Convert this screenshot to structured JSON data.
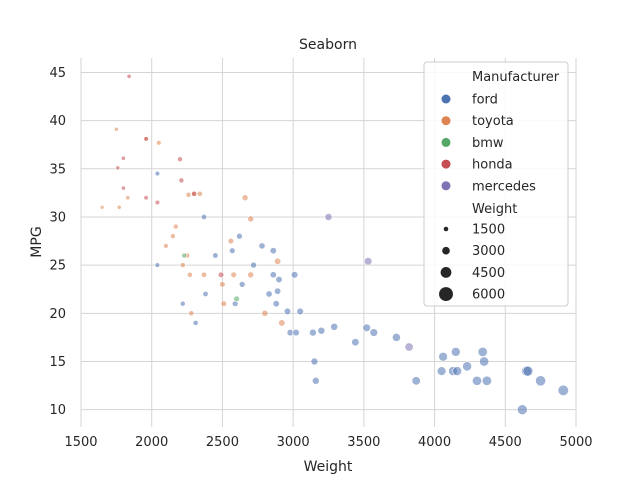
{
  "chart_data": {
    "type": "scatter",
    "title": "Seaborn",
    "xlabel": "Weight",
    "ylabel": "MPG",
    "xlim": [
      1500,
      5000
    ],
    "ylim": [
      8.2,
      46.5
    ],
    "xticks": [
      1500,
      2000,
      2500,
      3000,
      3500,
      4000,
      4500,
      5000
    ],
    "yticks": [
      10,
      15,
      20,
      25,
      30,
      35,
      40,
      45
    ],
    "grid": true,
    "legend_position": "top-right",
    "hue_title": "Manufacturer",
    "size_title": "Weight",
    "size_legend_values": [
      "1500",
      "3000",
      "4500",
      "6000"
    ],
    "series": [
      {
        "name": "ford",
        "color": "#4c72b0",
        "points": [
          [
            2040,
            34.5
          ],
          [
            2040,
            25
          ],
          [
            2220,
            21
          ],
          [
            2310,
            19
          ],
          [
            2370,
            30
          ],
          [
            2380,
            22
          ],
          [
            2450,
            26
          ],
          [
            2570,
            26.5
          ],
          [
            2590,
            21
          ],
          [
            2620,
            28
          ],
          [
            2640,
            23
          ],
          [
            2720,
            25
          ],
          [
            2780,
            27
          ],
          [
            2830,
            22
          ],
          [
            2860,
            26.5
          ],
          [
            2860,
            24
          ],
          [
            2880,
            21
          ],
          [
            2890,
            22.3
          ],
          [
            2900,
            23.5
          ],
          [
            2960,
            20.2
          ],
          [
            2980,
            18
          ],
          [
            3010,
            24
          ],
          [
            3020,
            18
          ],
          [
            3050,
            20.2
          ],
          [
            3140,
            18
          ],
          [
            3150,
            15
          ],
          [
            3160,
            13
          ],
          [
            3200,
            18.2
          ],
          [
            3290,
            18.6
          ],
          [
            3440,
            17
          ],
          [
            3520,
            18.5
          ],
          [
            3570,
            18
          ],
          [
            3730,
            17.5
          ],
          [
            3870,
            13
          ],
          [
            4050,
            14
          ],
          [
            4060,
            15.5
          ],
          [
            4130,
            14
          ],
          [
            4150,
            16
          ],
          [
            4160,
            14
          ],
          [
            4230,
            14.5
          ],
          [
            4300,
            13
          ],
          [
            4340,
            16
          ],
          [
            4350,
            15
          ],
          [
            4370,
            13
          ],
          [
            4620,
            10
          ],
          [
            4650,
            14
          ],
          [
            4660,
            14
          ],
          [
            4750,
            13
          ],
          [
            4910,
            12
          ]
        ]
      },
      {
        "name": "toyota",
        "color": "#dd8452",
        "points": [
          [
            1650,
            31
          ],
          [
            1750,
            39.1
          ],
          [
            1770,
            31
          ],
          [
            1830,
            32
          ],
          [
            1960,
            38.1
          ],
          [
            2050,
            37.7
          ],
          [
            2100,
            27
          ],
          [
            2150,
            28
          ],
          [
            2170,
            29
          ],
          [
            2220,
            25
          ],
          [
            2250,
            26
          ],
          [
            2260,
            32.3
          ],
          [
            2270,
            24
          ],
          [
            2280,
            20
          ],
          [
            2300,
            32.4
          ],
          [
            2340,
            32.4
          ],
          [
            2370,
            24
          ],
          [
            2500,
            23
          ],
          [
            2510,
            21
          ],
          [
            2560,
            27.5
          ],
          [
            2580,
            24
          ],
          [
            2660,
            32
          ],
          [
            2700,
            24
          ],
          [
            2700,
            29.8
          ],
          [
            2800,
            20
          ],
          [
            2890,
            25.4
          ],
          [
            2920,
            19
          ]
        ]
      },
      {
        "name": "bmw",
        "color": "#55a868",
        "points": [
          [
            2230,
            26
          ],
          [
            2600,
            21.5
          ]
        ]
      },
      {
        "name": "honda",
        "color": "#c44e52",
        "points": [
          [
            1800,
            36.1
          ],
          [
            1760,
            35.1
          ],
          [
            1800,
            33
          ],
          [
            1840,
            44.6
          ],
          [
            1960,
            38.1
          ],
          [
            1960,
            32
          ],
          [
            2040,
            31.5
          ],
          [
            2200,
            36
          ],
          [
            2210,
            33.8
          ],
          [
            2300,
            32.4
          ],
          [
            2490,
            24
          ]
        ]
      },
      {
        "name": "mercedes",
        "color": "#8172b3",
        "points": [
          [
            3250,
            30
          ],
          [
            3530,
            25.4
          ],
          [
            3820,
            16.5
          ]
        ]
      }
    ]
  }
}
